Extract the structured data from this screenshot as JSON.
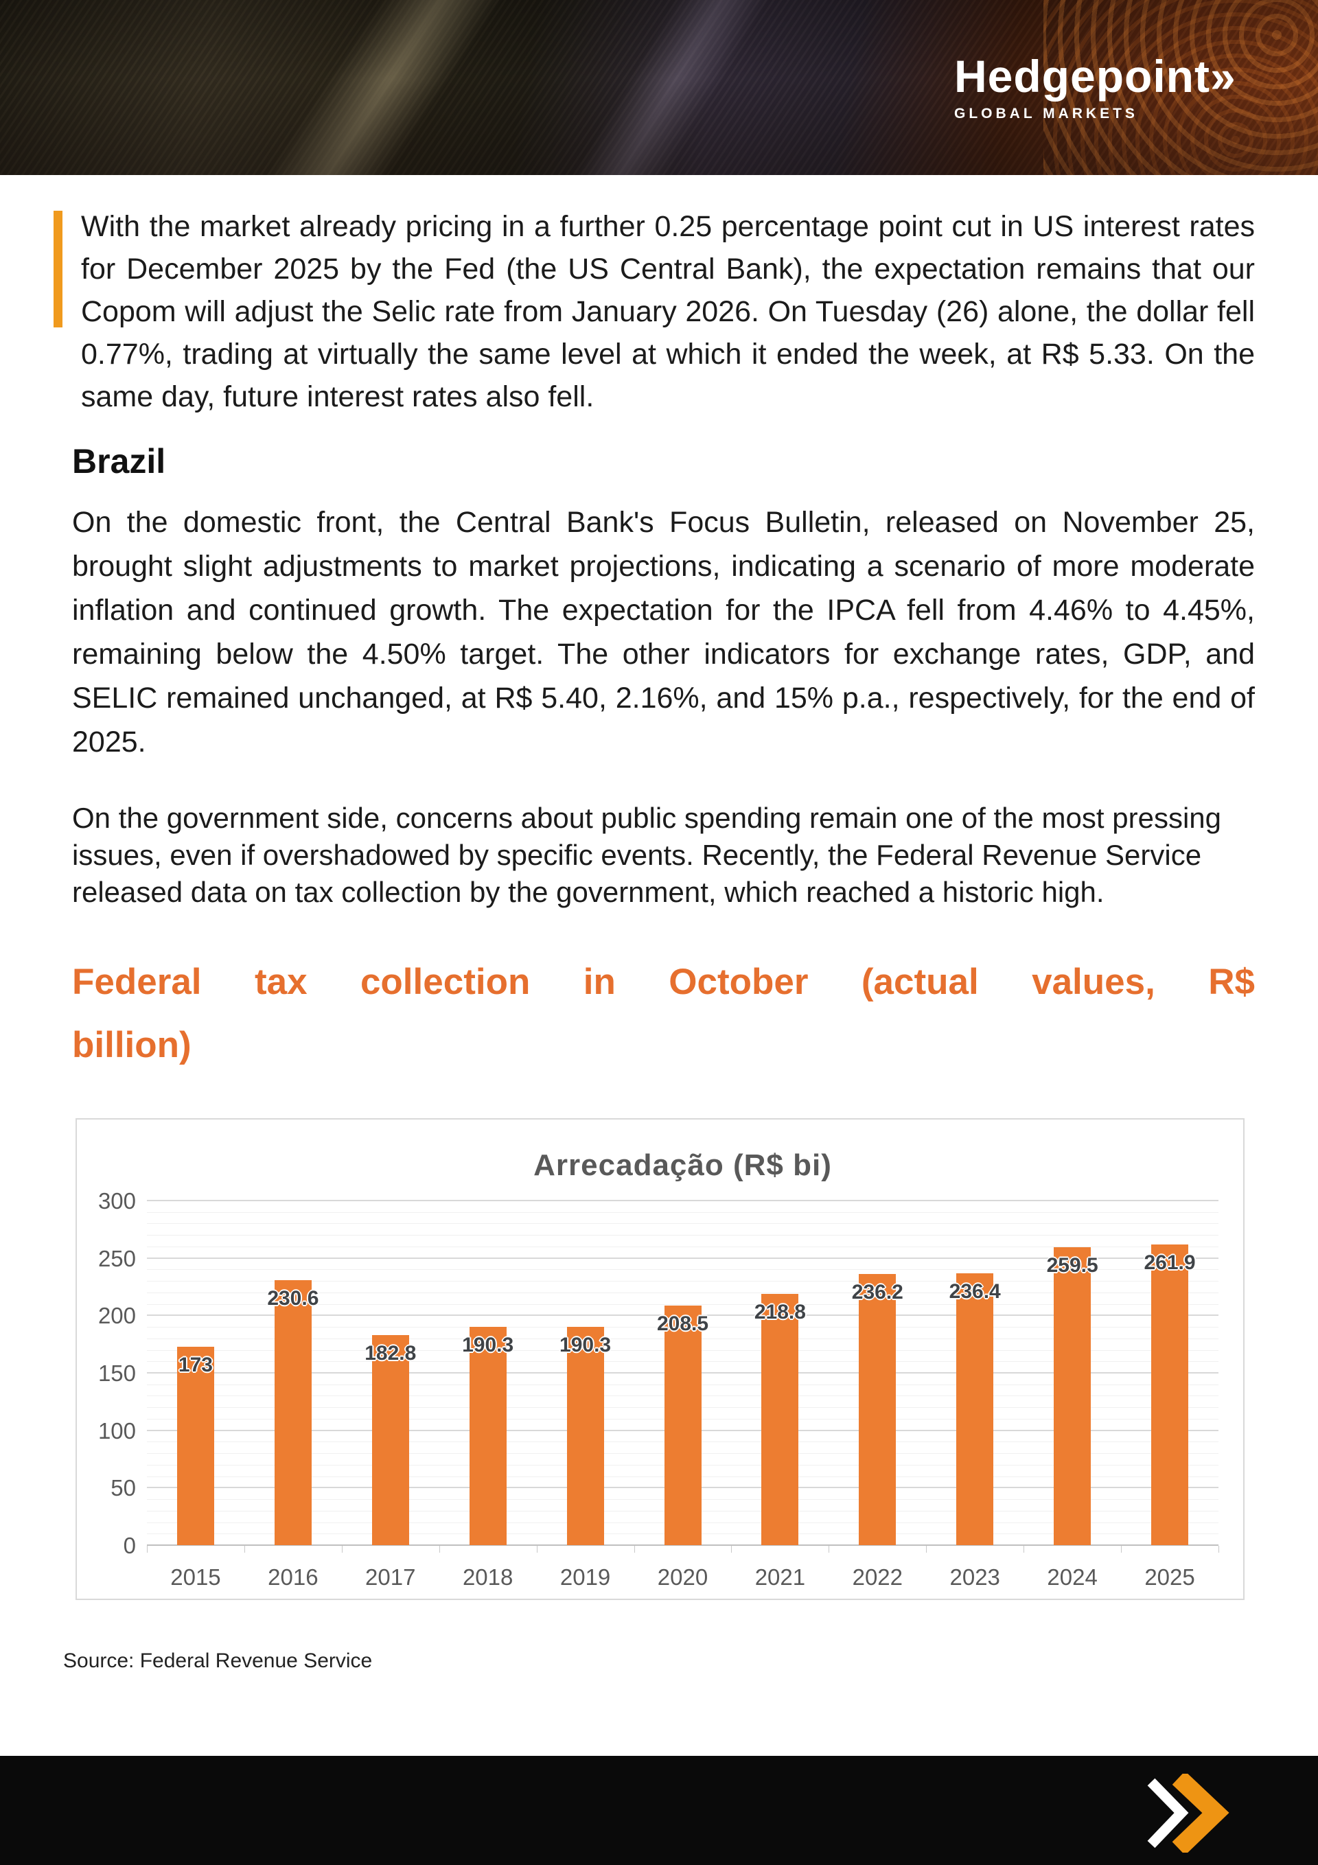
{
  "brand": {
    "name": "Hedgepoint",
    "chevron": "»",
    "tagline": "GLOBAL MARKETS"
  },
  "intro_quote": "With the market already pricing in a further 0.25 percentage point cut in US interest rates for December 2025 by the Fed (the US Central Bank), the expectation remains that our Copom will adjust the Selic rate from January 2026. On Tuesday (26) alone, the dollar fell 0.77%, trading at virtually the same level at which it ended the week, at R$ 5.33. On the same day, future interest rates also fell.",
  "sections": {
    "brazil": {
      "heading": "Brazil",
      "paragraph1": "On the domestic front, the Central Bank's Focus Bulletin, released on November 25, brought slight adjustments to market projections, indicating a scenario of more moderate inflation and continued growth. The expectation for the IPCA fell from 4.46% to 4.45%, remaining below the 4.50% target. The other indicators for exchange rates, GDP, and SELIC remained unchanged, at R$ 5.40, 2.16%, and 15% p.a., respectively, for the end of 2025.",
      "paragraph2": "On the government side, concerns about public spending remain one of the most pressing issues, even if overshadowed by specific events. Recently, the Federal Revenue Service released data on tax collection by the government, which reached a historic high."
    }
  },
  "chart_heading": {
    "full": "Federal tax collection in October (actual values, R$ billion)",
    "line1": "Federal tax collection in October (actual values, R$",
    "line2": "billion)"
  },
  "chart_data": {
    "type": "bar",
    "title": "Arrecadação (R$ bi)",
    "categories": [
      "2015",
      "2016",
      "2017",
      "2018",
      "2019",
      "2020",
      "2021",
      "2022",
      "2023",
      "2024",
      "2025"
    ],
    "values": [
      173,
      230.6,
      182.8,
      190.3,
      190.3,
      208.5,
      218.8,
      236.2,
      236.4,
      259.5,
      261.9
    ],
    "xlabel": "",
    "ylabel": "",
    "ylim": [
      0,
      300
    ],
    "y_ticks": [
      0,
      50,
      100,
      150,
      200,
      250,
      300
    ],
    "y_minor_step": 10,
    "bar_color": "#ED7D31",
    "grid": "horizontal-major-and-minor",
    "legend": "none",
    "data_label_position": "inside-end"
  },
  "source_note": "Source: Federal Revenue Service",
  "colors": {
    "accent_orange": "#E66F2E",
    "quote_bar_orange": "#F09A1E",
    "bar_orange": "#ED7D31",
    "footer_chevron_orange": "#EE9413",
    "footer_bg": "#0A0A0A",
    "chart_title_gray": "#595959",
    "axis_label_gray": "#595959",
    "data_label_gray": "#3F4347"
  }
}
